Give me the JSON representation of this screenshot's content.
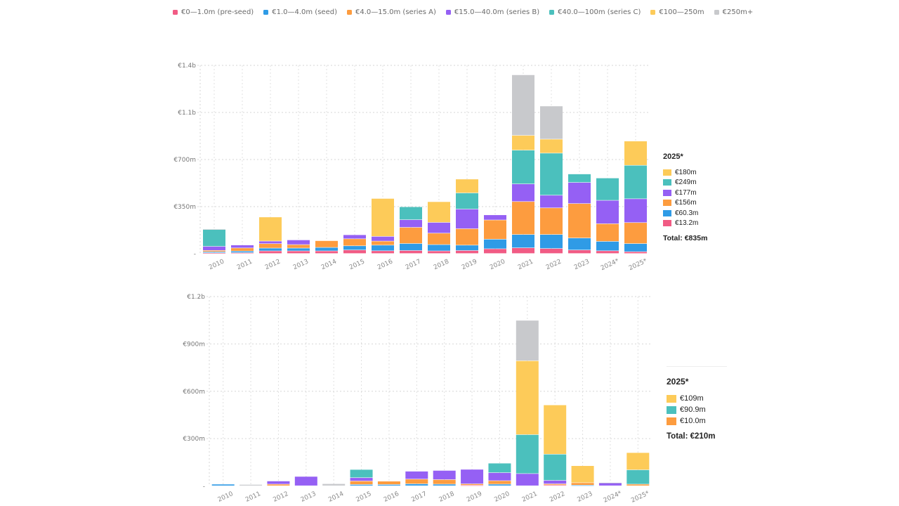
{
  "legend": [
    {
      "key": "preseed",
      "label": "€0—1.0m (pre-seed)",
      "color": "#F15B84"
    },
    {
      "key": "seed",
      "label": "€1.0—4.0m (seed)",
      "color": "#2F9BE6"
    },
    {
      "key": "seriesA",
      "label": "€4.0—15.0m (series A)",
      "color": "#FD9C3F"
    },
    {
      "key": "seriesB",
      "label": "€15.0—40.0m (series B)",
      "color": "#9560F4"
    },
    {
      "key": "seriesC",
      "label": "€40.0—100m (series C)",
      "color": "#4BC0BD"
    },
    {
      "key": "m100_250",
      "label": "€100—250m",
      "color": "#FDCB59"
    },
    {
      "key": "m250plus",
      "label": "€250m+",
      "color": "#C8C9CC"
    }
  ],
  "chart_data": [
    {
      "type": "bar",
      "stacked": true,
      "title": "",
      "xlabel": "",
      "ylabel": "",
      "ylim": [
        0,
        1400
      ],
      "yticks": [
        0,
        350,
        700,
        1050,
        1400
      ],
      "ytick_labels": [
        "-",
        "€350m",
        "€700m",
        "€1.1b",
        "€1.4b"
      ],
      "grid": true,
      "categories": [
        "2010",
        "2011",
        "2012",
        "2013",
        "2014",
        "2015",
        "2016",
        "2017",
        "2018",
        "2019",
        "2020",
        "2021",
        "2022",
        "2023",
        "2024*",
        "2025*"
      ],
      "series": [
        {
          "name": "€0—1.0m (pre-seed)",
          "values": [
            5,
            6,
            19,
            19,
            19,
            26,
            20,
            22,
            19,
            22,
            35,
            42,
            37,
            26,
            20,
            13.2
          ]
        },
        {
          "name": "€1.0—4.0m (seed)",
          "values": [
            8,
            12,
            21,
            21,
            26,
            31,
            42,
            52,
            47,
            40,
            71,
            99,
            104,
            89,
            70,
            60.3
          ]
        },
        {
          "name": "€4.0—15.0m (series A)",
          "values": [
            10,
            23,
            33,
            26,
            50,
            52,
            30,
            120,
            85,
            122,
            143,
            245,
            198,
            256,
            131,
            156
          ]
        },
        {
          "name": "€15.0—40.0m (series B)",
          "values": [
            30,
            22,
            19,
            35,
            0,
            30,
            35,
            57,
            80,
            146,
            38,
            131,
            94,
            157,
            174,
            177
          ]
        },
        {
          "name": "€40.0—100m (series C)",
          "values": [
            125,
            0,
            0,
            0,
            0,
            0,
            0,
            96,
            0,
            120,
            0,
            251,
            313,
            63,
            166,
            249
          ]
        },
        {
          "name": "€100—250m",
          "values": [
            0,
            0,
            179,
            0,
            0,
            0,
            282,
            0,
            154,
            103,
            0,
            110,
            104,
            0,
            0,
            180
          ]
        },
        {
          "name": "€250m+",
          "values": [
            4,
            0,
            0,
            0,
            0,
            0,
            0,
            0,
            0,
            0,
            0,
            450,
            246,
            0,
            0,
            0
          ]
        }
      ],
      "hover_legend": {
        "year": "2025*",
        "items": [
          {
            "label": "€180m",
            "series": "€100—250m"
          },
          {
            "label": "€249m",
            "series": "€40.0—100m (series C)"
          },
          {
            "label": "€177m",
            "series": "€15.0—40.0m (series B)"
          },
          {
            "label": "€156m",
            "series": "€4.0—15.0m (series A)"
          },
          {
            "label": "€60.3m",
            "series": "€1.0—4.0m (seed)"
          },
          {
            "label": "€13.2m",
            "series": "€0—1.0m (pre-seed)"
          }
        ],
        "total": "Total: €835m"
      }
    },
    {
      "type": "bar",
      "stacked": true,
      "title": "",
      "xlabel": "",
      "ylabel": "",
      "ylim": [
        0,
        1200
      ],
      "yticks": [
        0,
        300,
        600,
        900,
        1200
      ],
      "ytick_labels": [
        "-",
        "€300m",
        "€600m",
        "€900m",
        "€1.2b"
      ],
      "grid": true,
      "categories": [
        "2010",
        "2011",
        "2012",
        "2013",
        "2014",
        "2015",
        "2016",
        "2017",
        "2018",
        "2019",
        "2020",
        "2021",
        "2022",
        "2023",
        "2024*",
        "2025*"
      ],
      "series": [
        {
          "name": "€0—1.0m (pre-seed)",
          "values": [
            0,
            0,
            0,
            0,
            0,
            0,
            0,
            0,
            0,
            4,
            0,
            0,
            5,
            0,
            0,
            0
          ]
        },
        {
          "name": "€1.0—4.0m (seed)",
          "values": [
            10,
            0,
            0,
            0,
            0,
            8,
            8,
            12,
            10,
            0,
            10,
            0,
            0,
            4,
            0,
            0
          ]
        },
        {
          "name": "€4.0—15.0m (series A)",
          "values": [
            0,
            0,
            10,
            0,
            0,
            22,
            21,
            30,
            29,
            8,
            22,
            0,
            7,
            15,
            0,
            10.0
          ]
        },
        {
          "name": "€15.0—40.0m (series B)",
          "values": [
            0,
            0,
            20,
            59,
            0,
            21,
            0,
            50,
            58,
            92,
            51,
            77,
            22,
            0,
            18,
            0
          ]
        },
        {
          "name": "€40.0—100m (series C)",
          "values": [
            0,
            0,
            0,
            0,
            0,
            52,
            0,
            0,
            0,
            0,
            60,
            247,
            166,
            0,
            0,
            90.9
          ]
        },
        {
          "name": "€100—250m",
          "values": [
            0,
            0,
            0,
            0,
            0,
            0,
            0,
            0,
            0,
            0,
            0,
            468,
            312,
            108,
            0,
            109
          ]
        },
        {
          "name": "€250m+",
          "values": [
            0,
            8,
            0,
            0,
            13,
            0,
            0,
            0,
            0,
            0,
            0,
            256,
            0,
            0,
            2,
            0
          ]
        }
      ],
      "hover_legend": {
        "year": "2025*",
        "items": [
          {
            "label": "€109m",
            "series": "€100—250m"
          },
          {
            "label": "€90.9m",
            "series": "€40.0—100m (series C)"
          },
          {
            "label": "€10.0m",
            "series": "€4.0—15.0m (series A)"
          }
        ],
        "total": "Total: €210m"
      }
    }
  ]
}
